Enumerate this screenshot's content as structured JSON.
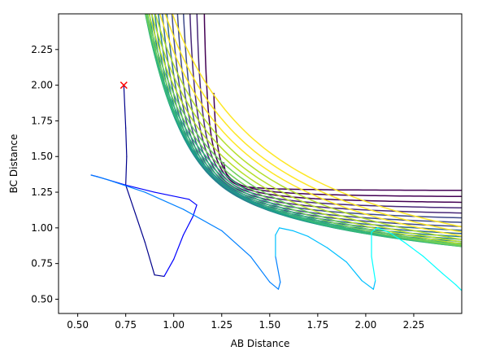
{
  "chart_data": {
    "type": "contour",
    "title": "",
    "xlabel": "AB Distance",
    "ylabel": "BC Distance",
    "xlim": [
      0.4,
      2.5
    ],
    "ylim": [
      0.4,
      2.5
    ],
    "x_ticks": [
      "0.50",
      "0.75",
      "1.00",
      "1.25",
      "1.50",
      "1.75",
      "2.00",
      "2.25"
    ],
    "y_ticks": [
      "0.50",
      "0.75",
      "1.00",
      "1.25",
      "1.50",
      "1.75",
      "2.00",
      "2.25"
    ],
    "x_tick_values": [
      0.5,
      0.75,
      1.0,
      1.25,
      1.5,
      1.75,
      2.0,
      2.25
    ],
    "y_tick_values": [
      0.5,
      0.75,
      1.0,
      1.25,
      1.5,
      1.75,
      2.0,
      2.25
    ],
    "contour_colormap": "viridis",
    "contour_colors": [
      "#440154",
      "#482878",
      "#3e4989",
      "#31688e",
      "#26828e",
      "#1f9e89",
      "#35b779",
      "#6ece58",
      "#b5de2b",
      "#fde725"
    ],
    "start_marker": {
      "x": 0.74,
      "y": 2.0,
      "symbol": "x",
      "color": "#ff0000"
    },
    "trajectory": {
      "colormap": "blue-to-cyan",
      "colors": [
        "#00008b",
        "#0000ff",
        "#0080ff",
        "#00c0ff",
        "#00ffff"
      ],
      "points": [
        [
          0.74,
          2.0
        ],
        [
          0.745,
          1.85
        ],
        [
          0.75,
          1.7
        ],
        [
          0.755,
          1.5
        ],
        [
          0.75,
          1.3
        ],
        [
          0.8,
          1.1
        ],
        [
          0.85,
          0.9
        ],
        [
          0.9,
          0.67
        ],
        [
          0.95,
          0.66
        ],
        [
          1.0,
          0.78
        ],
        [
          1.05,
          0.95
        ],
        [
          1.1,
          1.08
        ],
        [
          1.12,
          1.16
        ],
        [
          1.08,
          1.2
        ],
        [
          0.9,
          1.25
        ],
        [
          0.75,
          1.3
        ],
        [
          0.6,
          1.36
        ],
        [
          0.57,
          1.37
        ],
        [
          0.65,
          1.34
        ],
        [
          0.85,
          1.25
        ],
        [
          1.05,
          1.13
        ],
        [
          1.25,
          0.98
        ],
        [
          1.4,
          0.8
        ],
        [
          1.5,
          0.62
        ],
        [
          1.545,
          0.57
        ],
        [
          1.555,
          0.62
        ],
        [
          1.53,
          0.8
        ],
        [
          1.53,
          0.95
        ],
        [
          1.55,
          1.0
        ],
        [
          1.62,
          0.98
        ],
        [
          1.7,
          0.94
        ],
        [
          1.8,
          0.86
        ],
        [
          1.9,
          0.76
        ],
        [
          1.98,
          0.63
        ],
        [
          2.04,
          0.57
        ],
        [
          2.05,
          0.63
        ],
        [
          2.03,
          0.8
        ],
        [
          2.03,
          0.97
        ],
        [
          2.06,
          1.0
        ],
        [
          2.12,
          0.97
        ],
        [
          2.2,
          0.9
        ],
        [
          2.3,
          0.8
        ],
        [
          2.4,
          0.68
        ],
        [
          2.47,
          0.6
        ],
        [
          2.5,
          0.56
        ]
      ]
    }
  }
}
